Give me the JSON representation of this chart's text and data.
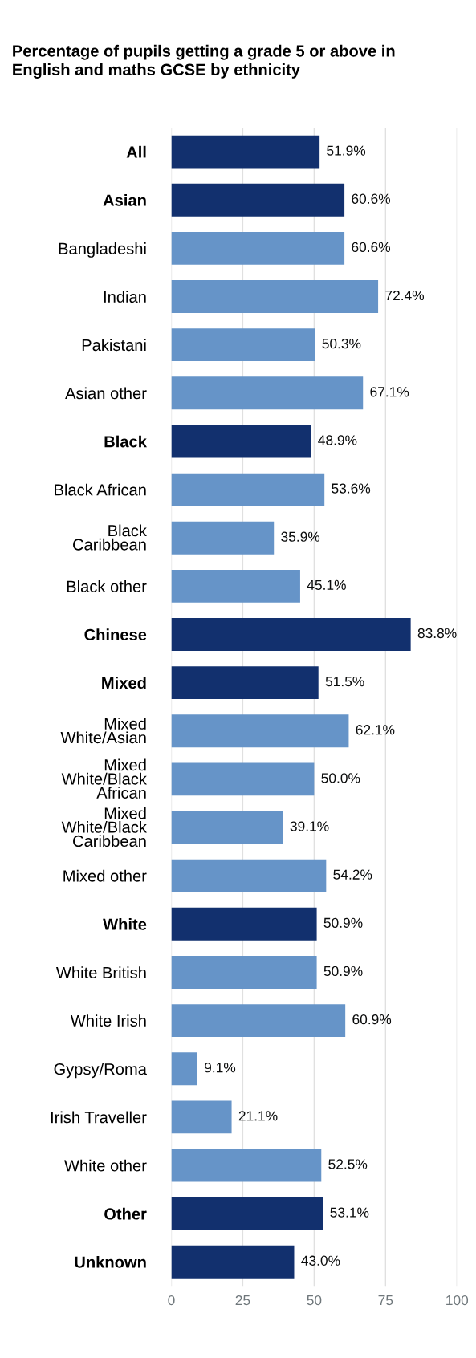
{
  "chart_data": {
    "type": "bar",
    "orientation": "horizontal",
    "title": "Percentage of pupils getting a grade 5 or above in\nEnglish and maths GCSE by ethnicity",
    "categories": [
      "All",
      "Asian",
      "Bangladeshi",
      "Indian",
      "Pakistani",
      "Asian other",
      "Black",
      "Black African",
      "Black\nCaribbean",
      "Black other",
      "Chinese",
      "Mixed",
      "Mixed\nWhite/Asian",
      "Mixed\nWhite/Black\nAfrican",
      "Mixed\nWhite/Black\nCaribbean",
      "Mixed other",
      "White",
      "White British",
      "White Irish",
      "Gypsy/Roma",
      "Irish Traveller",
      "White other",
      "Other",
      "Unknown"
    ],
    "values": [
      51.9,
      60.6,
      60.6,
      72.4,
      50.3,
      67.1,
      48.9,
      53.6,
      35.9,
      45.1,
      83.8,
      51.5,
      62.1,
      50.0,
      39.1,
      54.2,
      50.9,
      50.9,
      60.9,
      9.1,
      21.1,
      52.5,
      53.1,
      43.0
    ],
    "value_labels": [
      "51.9%",
      "60.6%",
      "60.6%",
      "72.4%",
      "50.3%",
      "67.1%",
      "48.9%",
      "53.6%",
      "35.9%",
      "45.1%",
      "83.8%",
      "51.5%",
      "62.1%",
      "50.0%",
      "39.1%",
      "54.2%",
      "50.9%",
      "50.9%",
      "60.9%",
      "9.1%",
      "21.1%",
      "52.5%",
      "53.1%",
      "43.0%"
    ],
    "colors": [
      "#12306e",
      "#12306e",
      "#6694c8",
      "#6694c8",
      "#6694c8",
      "#6694c8",
      "#12306e",
      "#6694c8",
      "#6694c8",
      "#6694c8",
      "#12306e",
      "#12306e",
      "#6694c8",
      "#6694c8",
      "#6694c8",
      "#6694c8",
      "#12306e",
      "#6694c8",
      "#6694c8",
      "#6694c8",
      "#6694c8",
      "#6694c8",
      "#12306e",
      "#12306e"
    ],
    "xlim": [
      0,
      100
    ],
    "xticks": [
      0,
      25,
      50,
      75,
      100
    ],
    "grid": "x"
  }
}
